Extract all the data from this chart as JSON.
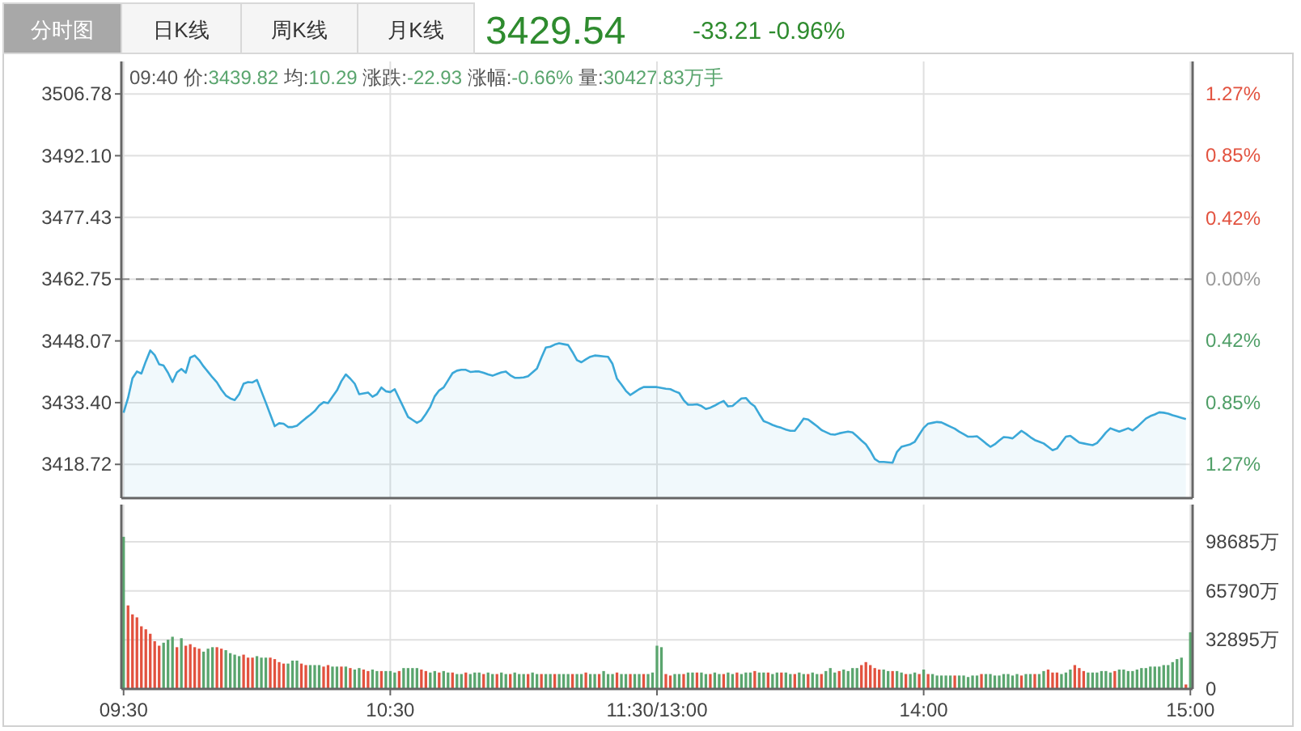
{
  "chart_data": [
    {
      "type": "area",
      "title": "3429.54",
      "subtitle": "-33.21  -0.96%",
      "annotations": [
        "分时图",
        "日K线",
        "周K线",
        "月K线",
        "09:40 价:3439.82 均:10.29 涨跌:-22.93 涨幅:-0.66% 量:30427.83万手"
      ],
      "categories": [
        null,
        null,
        null,
        null,
        null,
        null,
        null,
        null,
        null,
        null,
        null,
        null,
        null,
        null,
        null,
        null,
        null,
        null,
        null,
        null,
        null,
        null,
        null,
        null,
        null,
        null,
        null,
        null,
        null,
        null,
        null,
        null,
        null,
        null,
        null,
        null,
        null,
        null,
        null,
        null,
        null,
        null,
        null,
        null,
        null,
        null,
        null,
        null,
        null,
        null,
        null,
        null,
        null,
        null,
        null,
        null,
        null,
        null,
        null,
        null,
        null,
        null,
        null,
        null,
        null,
        null,
        null,
        null,
        null,
        null,
        null,
        null,
        null,
        null,
        null,
        null,
        null,
        null,
        null,
        null,
        null,
        null,
        null,
        null,
        null,
        null,
        null,
        null,
        null,
        null,
        null,
        null,
        null,
        null,
        null,
        null,
        null,
        null,
        null,
        null,
        null,
        null,
        null,
        null,
        null,
        null,
        null,
        null,
        null,
        null,
        null,
        null,
        null,
        null,
        null,
        null,
        null,
        null,
        null,
        null,
        null,
        null,
        null,
        null,
        null,
        null,
        null,
        null,
        null,
        null,
        null,
        null,
        null,
        null,
        null,
        null,
        null,
        null,
        null,
        null,
        null,
        null,
        null,
        null,
        null,
        null,
        null,
        null,
        null,
        null,
        null,
        null,
        null,
        null,
        null,
        null,
        null,
        null,
        null,
        null,
        null,
        null,
        null,
        null,
        null,
        null,
        null,
        null,
        null,
        null,
        null,
        null,
        null,
        null,
        null,
        null,
        null,
        null,
        null,
        null,
        null,
        null,
        null,
        null,
        null,
        null,
        null,
        null,
        null,
        null,
        null,
        null,
        null,
        null,
        null,
        null,
        null,
        null,
        null,
        null,
        null,
        null,
        null,
        null,
        null,
        null,
        null,
        null,
        null,
        null,
        null,
        null,
        null,
        null,
        null,
        null,
        null,
        null,
        null,
        null,
        null,
        null,
        null,
        null,
        null,
        null,
        null,
        null,
        null,
        null,
        null,
        null,
        null,
        null,
        null,
        null,
        null,
        null,
        null,
        null,
        null
      ],
      "ylim": [
        3410.7,
        3514.5
      ],
      "yticks": [
        3506.78,
        {
          "value": 3492.1,
          "label": "3492.10"
        },
        3477.43,
        3462.75,
        3448.07,
        {
          "value": 3433.4,
          "label": "3433.40"
        },
        3418.72
      ],
      "y2lim": [
        -1.503,
        1.494
      ],
      "y2ticks": [
        {
          "value": 1.27,
          "label": "1.27%"
        },
        {
          "value": 0.85,
          "label": "0.85%"
        },
        {
          "value": 0.42,
          "label": "0.42%"
        },
        {
          "value": 0,
          "label": "0.00%"
        },
        {
          "value": -0.42,
          "label": "0.42%"
        },
        {
          "value": -0.85,
          "label": "0.85%"
        },
        {
          "value": -1.27,
          "label": "1.27%"
        }
      ],
      "tick_labels": "y",
      "grid": true,
      "ref_lines": [
        {
          "axis": "y",
          "value": 3462.75,
          "color": "#888888",
          "line_style": "dashed"
        }
      ],
      "series": [
        {
          "color": "#3ba8d8",
          "values": [
            3431.0,
            3434.5,
            3439.2,
            3440.8,
            3440.3,
            3443.2,
            3445.8,
            3444.7,
            3442.5,
            3442.2,
            3440.5,
            3438.3,
            3440.6,
            3441.4,
            3440.5,
            3444.1,
            3444.6,
            3443.5,
            3442.0,
            3440.7,
            3439.4,
            3438.2,
            3436.5,
            3435.1,
            3434.4,
            3434.0,
            3435.4,
            3437.9,
            3438.3,
            3438.2,
            3438.8,
            3436.1,
            3433.4,
            3430.6,
            3427.8,
            3428.5,
            3428.4,
            3427.6,
            3427.6,
            3427.9,
            3428.8,
            3429.7,
            3430.5,
            3431.4,
            3432.7,
            3433.5,
            3433.3,
            3434.8,
            3436.3,
            3438.5,
            3440.1,
            3439.1,
            3437.9,
            3435.4,
            3435.6,
            3435.8,
            3434.8,
            3435.4,
            3437.0,
            3436.1,
            3435.9,
            3436.6,
            3434.4,
            3432.2,
            3430.0,
            3429.3,
            3428.6,
            3429.2,
            3430.7,
            3432.4,
            3434.9,
            3436.3,
            3437.0,
            3438.7,
            3440.4,
            3441.0,
            3441.2,
            3441.2,
            3440.7,
            3440.8,
            3440.8,
            3440.5,
            3440.1,
            3439.8,
            3440.2,
            3440.6,
            3440.8,
            3439.9,
            3439.3,
            3439.3,
            3439.4,
            3439.7,
            3440.6,
            3441.5,
            3444.1,
            3446.5,
            3446.7,
            3447.2,
            3447.5,
            3447.3,
            3447.1,
            3445.4,
            3443.5,
            3443.0,
            3443.7,
            3444.3,
            3444.6,
            3444.5,
            3444.4,
            3444.3,
            3442.6,
            3439.1,
            3437.7,
            3436.2,
            3435.2,
            3435.9,
            3436.6,
            3437.1,
            3437.1,
            3437.1,
            3437.1,
            3436.9,
            3436.7,
            3436.6,
            3436.1,
            3435.7,
            3434.0,
            3432.9,
            3432.9,
            3433.0,
            3432.6,
            3431.9,
            3432.2,
            3432.7,
            3433.3,
            3433.8,
            3432.5,
            3432.6,
            3433.5,
            3434.4,
            3434.5,
            3433.3,
            3432.5,
            3430.7,
            3429.0,
            3428.6,
            3428.1,
            3427.7,
            3427.4,
            3427.0,
            3426.7,
            3426.7,
            3428.1,
            3429.6,
            3429.4,
            3428.6,
            3427.8,
            3426.9,
            3426.4,
            3425.9,
            3425.8,
            3426.1,
            3426.3,
            3426.5,
            3426.3,
            3425.4,
            3424.4,
            3423.5,
            3421.9,
            3420.0,
            3419.3,
            3419.3,
            3419.2,
            3419.1,
            3421.7,
            3422.9,
            3423.2,
            3423.5,
            3424.1,
            3425.8,
            3427.4,
            3428.4,
            3428.6,
            3428.8,
            3428.7,
            3428.2,
            3427.7,
            3427.2,
            3426.5,
            3425.9,
            3425.3,
            3425.3,
            3425.4,
            3424.6,
            3423.7,
            3422.9,
            3423.5,
            3424.4,
            3425.2,
            3425.1,
            3424.9,
            3425.8,
            3426.7,
            3426.0,
            3425.2,
            3424.5,
            3424.1,
            3423.7,
            3422.9,
            3422.1,
            3422.5,
            3423.9,
            3425.3,
            3425.5,
            3424.7,
            3423.9,
            3423.7,
            3423.5,
            3423.3,
            3423.8,
            3425.0,
            3426.3,
            3427.3,
            3426.9,
            3426.5,
            3426.9,
            3427.3,
            3426.8,
            3427.6,
            3428.6,
            3429.6,
            3430.2,
            3430.6,
            3431.1,
            3431.0,
            3430.8,
            3430.4,
            3430.1,
            3429.8,
            3429.5,
            null
          ]
        }
      ]
    },
    {
      "type": "bar",
      "categories": [
        "09:30",
        null,
        null,
        null,
        null,
        null,
        null,
        null,
        null,
        null,
        null,
        null,
        null,
        null,
        null,
        null,
        null,
        null,
        null,
        null,
        null,
        null,
        null,
        null,
        null,
        null,
        null,
        null,
        null,
        null,
        null,
        null,
        null,
        null,
        null,
        null,
        null,
        null,
        null,
        null,
        null,
        null,
        null,
        null,
        null,
        null,
        null,
        null,
        null,
        null,
        null,
        null,
        null,
        null,
        null,
        null,
        null,
        null,
        null,
        null,
        "10:30",
        null,
        null,
        null,
        null,
        null,
        null,
        null,
        null,
        null,
        null,
        null,
        null,
        null,
        null,
        null,
        null,
        null,
        null,
        null,
        null,
        null,
        null,
        null,
        null,
        null,
        null,
        null,
        null,
        null,
        null,
        null,
        null,
        null,
        null,
        null,
        null,
        null,
        null,
        null,
        null,
        null,
        null,
        null,
        null,
        null,
        null,
        null,
        null,
        null,
        null,
        null,
        null,
        null,
        null,
        null,
        null,
        null,
        null,
        null,
        "11:30/13:00",
        null,
        null,
        null,
        null,
        null,
        null,
        null,
        null,
        null,
        null,
        null,
        null,
        null,
        null,
        null,
        null,
        null,
        null,
        null,
        null,
        null,
        null,
        null,
        null,
        null,
        null,
        null,
        null,
        null,
        null,
        null,
        null,
        null,
        null,
        null,
        null,
        null,
        null,
        null,
        null,
        null,
        null,
        null,
        null,
        null,
        null,
        null,
        null,
        null,
        null,
        null,
        null,
        null,
        null,
        null,
        null,
        null,
        null,
        null,
        "14:00",
        null,
        null,
        null,
        null,
        null,
        null,
        null,
        null,
        null,
        null,
        null,
        null,
        null,
        null,
        null,
        null,
        null,
        null,
        null,
        null,
        null,
        null,
        null,
        null,
        null,
        null,
        null,
        null,
        null,
        null,
        null,
        null,
        null,
        null,
        null,
        null,
        null,
        null,
        null,
        null,
        null,
        null,
        null,
        null,
        null,
        null,
        null,
        null,
        null,
        null,
        null,
        null,
        null,
        null,
        null,
        null,
        null,
        null,
        null,
        "15:00"
      ],
      "ylim": [
        0,
        123600
      ],
      "yticks": [
        0,
        {
          "value": 32895,
          "label": "32895万"
        },
        {
          "value": 65790,
          "label": "65790万"
        },
        {
          "value": 98685,
          "label": "98685万"
        }
      ],
      "grid": true,
      "series": [
        {
          "values": [
            102000,
            56000,
            50000,
            48000,
            42000,
            40000,
            37000,
            32000,
            29000,
            31000,
            33000,
            35000,
            28000,
            34000,
            29000,
            30000,
            28000,
            27000,
            25000,
            27000,
            28000,
            28000,
            27000,
            26000,
            24000,
            23000,
            22000,
            23000,
            21000,
            21000,
            22000,
            21000,
            21000,
            21000,
            20000,
            18000,
            17000,
            17000,
            19000,
            19000,
            17000,
            16000,
            16000,
            16000,
            16000,
            15000,
            16000,
            15000,
            15000,
            15000,
            15000,
            14000,
            13000,
            14000,
            13000,
            12000,
            13000,
            12000,
            12000,
            12000,
            12000,
            11000,
            12000,
            14000,
            14000,
            14000,
            14000,
            13000,
            12000,
            11000,
            12000,
            11000,
            12000,
            11000,
            11000,
            10000,
            10000,
            11000,
            10000,
            11000,
            11000,
            10000,
            11000,
            10000,
            10000,
            11000,
            10000,
            10000,
            11000,
            10000,
            10000,
            10000,
            11000,
            10000,
            10000,
            10000,
            10000,
            10000,
            10000,
            10000,
            10000,
            10000,
            10000,
            10000,
            11000,
            10000,
            10000,
            10000,
            12000,
            10000,
            10000,
            11000,
            10000,
            10000,
            10000,
            10000,
            10000,
            10000,
            10000,
            11000,
            29000,
            28000,
            10000,
            9000,
            10000,
            10000,
            10000,
            11000,
            11000,
            11000,
            11000,
            10000,
            10000,
            11000,
            10000,
            10000,
            11000,
            10000,
            11000,
            10000,
            11000,
            11000,
            12000,
            11000,
            11000,
            11000,
            10000,
            11000,
            11000,
            11000,
            10000,
            10000,
            11000,
            10000,
            10000,
            11000,
            10000,
            10000,
            12000,
            14000,
            11000,
            12000,
            13000,
            12000,
            14000,
            14000,
            16000,
            18000,
            16000,
            14000,
            13000,
            13000,
            12000,
            12000,
            12000,
            11000,
            10000,
            10000,
            11000,
            10000,
            13000,
            10000,
            10000,
            9000,
            9000,
            9000,
            9000,
            9000,
            9000,
            9000,
            8000,
            9000,
            9000,
            10000,
            10000,
            10000,
            9000,
            9000,
            10000,
            10000,
            9000,
            10000,
            9000,
            10000,
            10000,
            10000,
            10000,
            12000,
            13000,
            11000,
            11000,
            10000,
            11000,
            13000,
            16000,
            14000,
            12000,
            11000,
            11000,
            11000,
            12000,
            12000,
            11000,
            12000,
            13000,
            13000,
            12000,
            12000,
            13000,
            14000,
            14000,
            15000,
            15000,
            15000,
            16000,
            16000,
            18000,
            20000,
            21000,
            3000,
            38000
          ],
          "colors": [
            "#5aa56e",
            "#e2523f",
            "#e2523f",
            "#e2523f",
            "#e2523f",
            "#e2523f",
            "#e2523f",
            "#e2523f",
            "#e2523f",
            "#5aa56e",
            "#5aa56e",
            "#5aa56e",
            "#e2523f",
            "#5aa56e",
            "#e2523f",
            "#e2523f",
            "#e2523f",
            "#e2523f",
            "#5aa56e",
            "#5aa56e",
            "#5aa56e",
            "#e2523f",
            "#e2523f",
            "#5aa56e",
            "#5aa56e",
            "#5aa56e",
            "#5aa56e",
            "#e2523f",
            "#e2523f",
            "#e2523f",
            "#5aa56e",
            "#5aa56e",
            "#5aa56e",
            "#e2523f",
            "#e2523f",
            "#e2523f",
            "#e2523f",
            "#5aa56e",
            "#5aa56e",
            "#5aa56e",
            "#e2523f",
            "#e2523f",
            "#5aa56e",
            "#5aa56e",
            "#5aa56e",
            "#e2523f",
            "#e2523f",
            "#5aa56e",
            "#5aa56e",
            "#e2523f",
            "#5aa56e",
            "#e2523f",
            "#5aa56e",
            "#5aa56e",
            "#e2523f",
            "#e2523f",
            "#5aa56e",
            "#5aa56e",
            "#e2523f",
            "#5aa56e",
            "#5aa56e",
            "#5aa56e",
            "#e2523f",
            "#5aa56e",
            "#5aa56e",
            "#5aa56e",
            "#5aa56e",
            "#e2523f",
            "#e2523f",
            "#5aa56e",
            "#5aa56e",
            "#e2523f",
            "#5aa56e",
            "#5aa56e",
            "#e2523f",
            "#5aa56e",
            "#5aa56e",
            "#e2523f",
            "#5aa56e",
            "#5aa56e",
            "#5aa56e",
            "#e2523f",
            "#5aa56e",
            "#5aa56e",
            "#e2523f",
            "#5aa56e",
            "#5aa56e",
            "#e2523f",
            "#5aa56e",
            "#5aa56e",
            "#5aa56e",
            "#e2523f",
            "#5aa56e",
            "#5aa56e",
            "#e2523f",
            "#5aa56e",
            "#5aa56e",
            "#e2523f",
            "#5aa56e",
            "#5aa56e",
            "#5aa56e",
            "#e2523f",
            "#5aa56e",
            "#5aa56e",
            "#e2523f",
            "#5aa56e",
            "#5aa56e",
            "#e2523f",
            "#5aa56e",
            "#5aa56e",
            "#5aa56e",
            "#e2523f",
            "#5aa56e",
            "#5aa56e",
            "#e2523f",
            "#5aa56e",
            "#5aa56e",
            "#e2523f",
            "#5aa56e",
            "#5aa56e",
            "#5aa56e",
            "#5aa56e",
            "#e2523f",
            "#e2523f",
            "#5aa56e",
            "#5aa56e",
            "#e2523f",
            "#5aa56e",
            "#5aa56e",
            "#e2523f",
            "#5aa56e",
            "#5aa56e",
            "#e2523f",
            "#5aa56e",
            "#5aa56e",
            "#e2523f",
            "#5aa56e",
            "#5aa56e",
            "#e2523f",
            "#5aa56e",
            "#5aa56e",
            "#5aa56e",
            "#e2523f",
            "#5aa56e",
            "#5aa56e",
            "#e2523f",
            "#5aa56e",
            "#5aa56e",
            "#e2523f",
            "#5aa56e",
            "#5aa56e",
            "#e2523f",
            "#5aa56e",
            "#5aa56e",
            "#e2523f",
            "#5aa56e",
            "#5aa56e",
            "#e2523f",
            "#5aa56e",
            "#5aa56e",
            "#5aa56e",
            "#e2523f",
            "#5aa56e",
            "#5aa56e",
            "#5aa56e",
            "#5aa56e",
            "#e2523f",
            "#e2523f",
            "#e2523f",
            "#e2523f",
            "#e2523f",
            "#5aa56e",
            "#5aa56e",
            "#e2523f",
            "#5aa56e",
            "#5aa56e",
            "#e2523f",
            "#5aa56e",
            "#5aa56e",
            "#e2523f",
            "#5aa56e",
            "#e2523f",
            "#5aa56e",
            "#5aa56e",
            "#5aa56e",
            "#5aa56e",
            "#5aa56e",
            "#e2523f",
            "#5aa56e",
            "#5aa56e",
            "#5aa56e",
            "#5aa56e",
            "#5aa56e",
            "#e2523f",
            "#5aa56e",
            "#5aa56e",
            "#5aa56e",
            "#5aa56e",
            "#5aa56e",
            "#5aa56e",
            "#5aa56e",
            "#5aa56e",
            "#e2523f",
            "#5aa56e",
            "#5aa56e",
            "#e2523f",
            "#5aa56e",
            "#5aa56e",
            "#e2523f",
            "#e2523f",
            "#e2523f",
            "#5aa56e",
            "#5aa56e",
            "#5aa56e",
            "#e2523f",
            "#e2523f",
            "#e2523f",
            "#5aa56e",
            "#5aa56e",
            "#5aa56e",
            "#5aa56e",
            "#5aa56e",
            "#5aa56e",
            "#e2523f",
            "#5aa56e",
            "#5aa56e",
            "#5aa56e",
            "#5aa56e",
            "#5aa56e",
            "#5aa56e",
            "#5aa56e",
            "#5aa56e",
            "#5aa56e",
            "#5aa56e",
            "#5aa56e",
            "#5aa56e",
            "#5aa56e",
            "#5aa56e",
            "#5aa56e",
            "#e2523f",
            "#5aa56e"
          ]
        }
      ]
    }
  ]
}
